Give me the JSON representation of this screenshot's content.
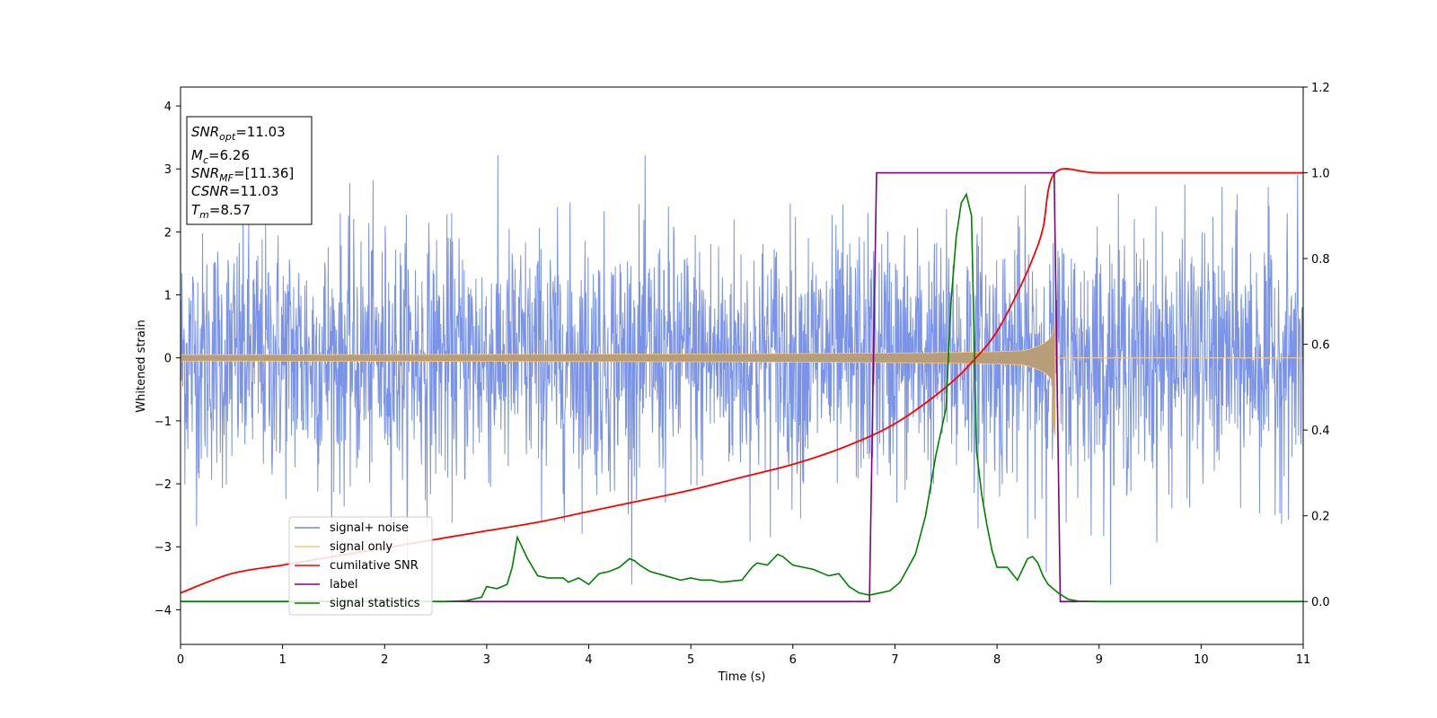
{
  "chart_data": {
    "type": "line",
    "xlabel": "Time (s)",
    "ylabel": "Whitened strain",
    "xlim": [
      0,
      11
    ],
    "ylim": [
      -4.55,
      4.3
    ],
    "y2lim": [
      -0.1,
      1.2
    ],
    "x_ticks": [
      "0",
      "1",
      "2",
      "3",
      "4",
      "5",
      "6",
      "7",
      "8",
      "9",
      "10",
      "11"
    ],
    "y_ticks": [
      "4",
      "3",
      "2",
      "1",
      "0",
      "−1",
      "−2",
      "−3",
      "−4"
    ],
    "y2_ticks": [
      "1.2",
      "1.0",
      "0.8",
      "0.6",
      "0.4",
      "0.2",
      "0.0"
    ],
    "grid": false,
    "legend_position": "lower-left",
    "info_box": {
      "line1_main": "SNR",
      "line1_sub": "opt",
      "line1_value": "=11.03",
      "line2_main": "M",
      "line2_sub": "c",
      "line2_value": "=6.26",
      "line3_main": "SNR",
      "line3_sub": "MF",
      "line3_value": "=[11.36]",
      "line4_main": "CSNR",
      "line4_value": "=11.03",
      "line5_main": "T",
      "line5_sub": "m",
      "line5_value": "=8.57"
    },
    "series": [
      {
        "name": "signal+ noise",
        "color": "#6b87e6",
        "axis": "left",
        "kind": "gaussian noise plus signal, approx. amplitude range [-3.6, 3.9]"
      },
      {
        "name": "signal only",
        "color": "#f5c979",
        "axis": "left",
        "kind": "chirp",
        "start_amplitude": 0.05,
        "peak_time": 8.57,
        "peak_amplitude": 0.6
      },
      {
        "name": "cumilative SNR",
        "color": "#ff0000",
        "axis": "right",
        "x": [
          0,
          0.5,
          1,
          1.5,
          2,
          2.5,
          3,
          3.5,
          4,
          4.5,
          5,
          5.5,
          6,
          6.5,
          7,
          7.5,
          7.8,
          8.0,
          8.2,
          8.35,
          8.45,
          8.57,
          9,
          10,
          11
        ],
        "values": [
          0.02,
          0.065,
          0.085,
          0.105,
          0.125,
          0.145,
          0.165,
          0.185,
          0.21,
          0.235,
          0.26,
          0.29,
          0.32,
          0.36,
          0.415,
          0.5,
          0.57,
          0.63,
          0.72,
          0.8,
          0.87,
          1.0,
          1.0,
          1.0,
          1.0
        ]
      },
      {
        "name": "label",
        "color": "#800080",
        "axis": "right",
        "x": [
          0,
          6.75,
          6.82,
          8.56,
          8.62,
          11
        ],
        "values": [
          0,
          0,
          1,
          1,
          0,
          0
        ]
      },
      {
        "name": "signal statistics",
        "color": "#008000",
        "axis": "right",
        "x": [
          0,
          2.6,
          2.8,
          2.95,
          3.0,
          3.1,
          3.2,
          3.25,
          3.3,
          3.4,
          3.5,
          3.6,
          3.75,
          3.8,
          3.9,
          4.0,
          4.1,
          4.2,
          4.3,
          4.4,
          4.45,
          4.5,
          4.6,
          4.75,
          4.9,
          5.0,
          5.1,
          5.2,
          5.3,
          5.5,
          5.6,
          5.65,
          5.75,
          5.85,
          5.9,
          6.0,
          6.1,
          6.2,
          6.3,
          6.35,
          6.45,
          6.55,
          6.65,
          6.75,
          6.85,
          6.95,
          7.05,
          7.2,
          7.3,
          7.4,
          7.5,
          7.55,
          7.6,
          7.65,
          7.7,
          7.75,
          7.8,
          7.85,
          7.9,
          7.95,
          8.0,
          8.1,
          8.2,
          8.3,
          8.35,
          8.4,
          8.45,
          8.5,
          8.6,
          8.7,
          8.8,
          9.0,
          11
        ],
        "values": [
          0,
          0,
          0.002,
          0.01,
          0.035,
          0.03,
          0.04,
          0.08,
          0.15,
          0.1,
          0.06,
          0.055,
          0.055,
          0.045,
          0.055,
          0.04,
          0.065,
          0.07,
          0.08,
          0.1,
          0.095,
          0.085,
          0.07,
          0.06,
          0.05,
          0.055,
          0.05,
          0.05,
          0.045,
          0.05,
          0.08,
          0.09,
          0.085,
          0.11,
          0.105,
          0.085,
          0.08,
          0.075,
          0.065,
          0.06,
          0.065,
          0.035,
          0.02,
          0.015,
          0.02,
          0.025,
          0.045,
          0.11,
          0.2,
          0.34,
          0.45,
          0.7,
          0.85,
          0.93,
          0.95,
          0.9,
          0.35,
          0.25,
          0.18,
          0.12,
          0.08,
          0.08,
          0.05,
          0.1,
          0.105,
          0.09,
          0.06,
          0.04,
          0.02,
          0.005,
          0.001,
          0,
          0
        ]
      }
    ]
  }
}
